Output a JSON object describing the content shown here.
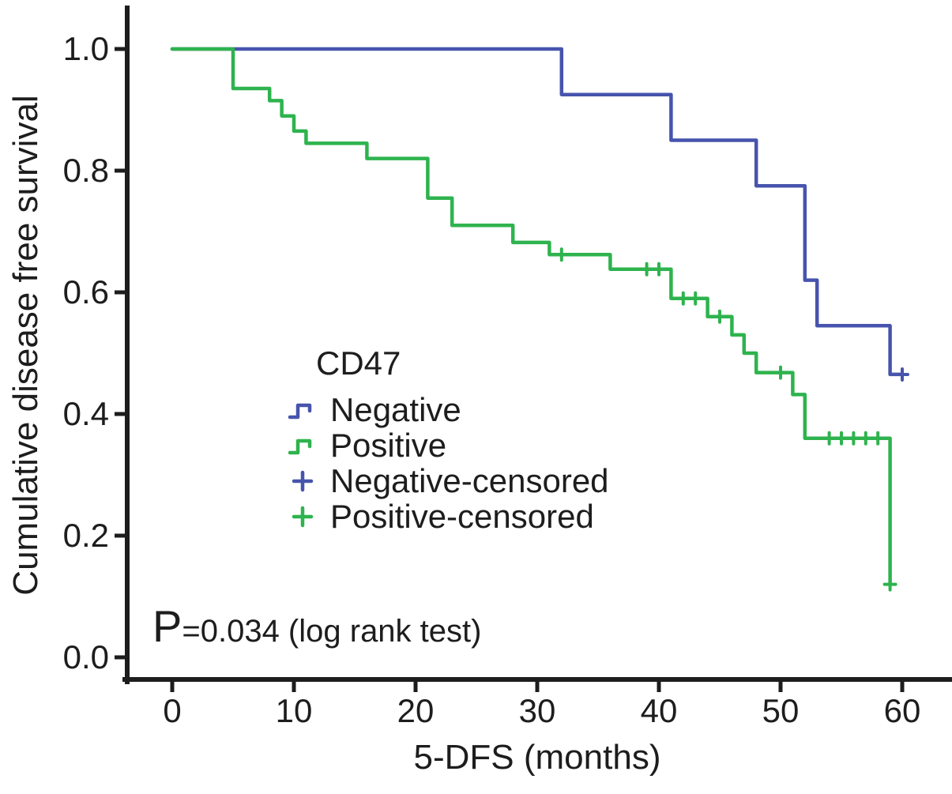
{
  "chart_data": {
    "type": "line",
    "subtype": "kaplan_meier_step",
    "title": "",
    "xlabel": "5-DFS (months)",
    "ylabel": "Cumulative disease free survival",
    "xlim": [
      0,
      64
    ],
    "ylim": [
      0.0,
      1.0
    ],
    "grid": false,
    "axis_color": "#1d1d1d",
    "xticks": [
      {
        "v": 0,
        "label": "0"
      },
      {
        "v": 10,
        "label": "10"
      },
      {
        "v": 20,
        "label": "20"
      },
      {
        "v": 30,
        "label": "30"
      },
      {
        "v": 40,
        "label": "40"
      },
      {
        "v": 50,
        "label": "50"
      },
      {
        "v": 60,
        "label": "60"
      }
    ],
    "yticks": [
      {
        "v": 0.0,
        "label": "0.0"
      },
      {
        "v": 0.2,
        "label": "0.2"
      },
      {
        "v": 0.4,
        "label": "0.4"
      },
      {
        "v": 0.6,
        "label": "0.6"
      },
      {
        "v": 0.8,
        "label": "0.8"
      },
      {
        "v": 1.0,
        "label": "1.0"
      }
    ],
    "series": [
      {
        "name": "Negative",
        "color": "#4754ad",
        "points": [
          [
            0,
            1.0
          ],
          [
            32,
            1.0
          ],
          [
            32,
            0.925
          ],
          [
            41,
            0.925
          ],
          [
            41,
            0.85
          ],
          [
            48,
            0.85
          ],
          [
            48,
            0.775
          ],
          [
            52,
            0.775
          ],
          [
            52,
            0.62
          ],
          [
            53,
            0.62
          ],
          [
            53,
            0.545
          ],
          [
            59,
            0.545
          ],
          [
            59,
            0.465
          ],
          [
            60,
            0.465
          ]
        ],
        "censored": [
          [
            60,
            0.465
          ]
        ]
      },
      {
        "name": "Positive",
        "color": "#2eb34e",
        "points": [
          [
            0,
            1.0
          ],
          [
            5,
            1.0
          ],
          [
            5,
            0.935
          ],
          [
            8,
            0.935
          ],
          [
            8,
            0.915
          ],
          [
            9,
            0.915
          ],
          [
            9,
            0.89
          ],
          [
            10,
            0.89
          ],
          [
            10,
            0.865
          ],
          [
            11,
            0.865
          ],
          [
            11,
            0.845
          ],
          [
            16,
            0.845
          ],
          [
            16,
            0.82
          ],
          [
            21,
            0.82
          ],
          [
            21,
            0.755
          ],
          [
            23,
            0.755
          ],
          [
            23,
            0.71
          ],
          [
            28,
            0.71
          ],
          [
            28,
            0.682
          ],
          [
            31,
            0.682
          ],
          [
            31,
            0.662
          ],
          [
            36,
            0.662
          ],
          [
            36,
            0.638
          ],
          [
            41,
            0.638
          ],
          [
            41,
            0.59
          ],
          [
            44,
            0.59
          ],
          [
            44,
            0.56
          ],
          [
            46,
            0.56
          ],
          [
            46,
            0.53
          ],
          [
            47,
            0.53
          ],
          [
            47,
            0.5
          ],
          [
            48,
            0.5
          ],
          [
            48,
            0.468
          ],
          [
            51,
            0.468
          ],
          [
            51,
            0.432
          ],
          [
            52,
            0.432
          ],
          [
            52,
            0.36
          ],
          [
            59,
            0.36
          ],
          [
            59,
            0.12
          ]
        ],
        "censored": [
          [
            32,
            0.662
          ],
          [
            39,
            0.638
          ],
          [
            40,
            0.638
          ],
          [
            42,
            0.59
          ],
          [
            43,
            0.59
          ],
          [
            45,
            0.56
          ],
          [
            50,
            0.468
          ],
          [
            54,
            0.36
          ],
          [
            55,
            0.36
          ],
          [
            56,
            0.36
          ],
          [
            57,
            0.36
          ],
          [
            58,
            0.36
          ],
          [
            59,
            0.12
          ]
        ]
      }
    ],
    "legend": {
      "title": "CD47",
      "position": "center-left",
      "items": [
        {
          "label": "Negative",
          "marker": "step",
          "color": "#4754ad"
        },
        {
          "label": "Positive",
          "marker": "step",
          "color": "#2eb34e"
        },
        {
          "label": "Negative-censored",
          "marker": "plus",
          "color": "#4754ad"
        },
        {
          "label": "Positive-censored",
          "marker": "plus",
          "color": "#2eb34e"
        }
      ]
    },
    "annotation": {
      "p": "P",
      "rest": "=0.034 (log rank test)"
    }
  }
}
